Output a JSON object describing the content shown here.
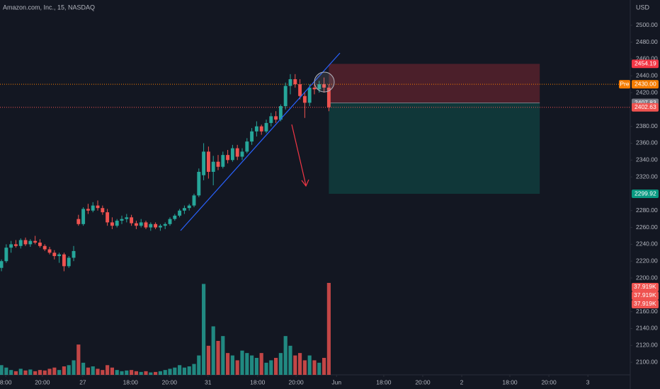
{
  "chart_data": {
    "type": "candlestick",
    "title": "Amazon.com, Inc., 15, NASDAQ",
    "currency": "USD",
    "up_color": "#26a69a",
    "down_color": "#ef5350",
    "open": [
      2212,
      2220,
      2236,
      2240,
      2238,
      2245,
      2240,
      2244,
      2242,
      2238,
      2234,
      2230,
      2226,
      2228,
      2214,
      2224,
      2270,
      2264,
      2282,
      2280,
      2286,
      2283,
      2278,
      2266,
      2262,
      2268,
      2270,
      2272,
      2265,
      2262,
      2266,
      2260,
      2264,
      2260,
      2262,
      2264,
      2270,
      2274,
      2280,
      2283,
      2286,
      2298,
      2322,
      2350,
      2326,
      2338,
      2332,
      2346,
      2340,
      2354,
      2344,
      2350,
      2362,
      2374,
      2380,
      2374,
      2384,
      2392,
      2388,
      2404,
      2428,
      2436,
      2430,
      2416,
      2408,
      2426,
      2424,
      2430,
      2426
    ],
    "high": [
      2222,
      2240,
      2244,
      2245,
      2247,
      2248,
      2246,
      2250,
      2246,
      2240,
      2237,
      2233,
      2230,
      2230,
      2226,
      2238,
      2275,
      2284,
      2288,
      2290,
      2292,
      2286,
      2282,
      2272,
      2270,
      2274,
      2276,
      2275,
      2268,
      2270,
      2268,
      2266,
      2266,
      2264,
      2266,
      2272,
      2276,
      2282,
      2286,
      2288,
      2300,
      2330,
      2360,
      2356,
      2345,
      2346,
      2350,
      2352,
      2358,
      2358,
      2354,
      2366,
      2378,
      2386,
      2382,
      2388,
      2396,
      2398,
      2406,
      2432,
      2442,
      2442,
      2436,
      2420,
      2430,
      2434,
      2434,
      2438,
      2430
    ],
    "low": [
      2208,
      2218,
      2230,
      2236,
      2235,
      2238,
      2237,
      2240,
      2236,
      2232,
      2228,
      2222,
      2218,
      2208,
      2212,
      2220,
      2262,
      2262,
      2276,
      2278,
      2280,
      2275,
      2262,
      2258,
      2260,
      2264,
      2266,
      2262,
      2258,
      2260,
      2258,
      2256,
      2258,
      2256,
      2258,
      2262,
      2268,
      2272,
      2276,
      2280,
      2284,
      2296,
      2316,
      2318,
      2310,
      2328,
      2330,
      2336,
      2338,
      2340,
      2340,
      2348,
      2358,
      2368,
      2370,
      2372,
      2380,
      2384,
      2386,
      2400,
      2418,
      2426,
      2412,
      2390,
      2404,
      2418,
      2420,
      2420,
      2398
    ],
    "close": [
      2220,
      2236,
      2240,
      2238,
      2245,
      2240,
      2244,
      2242,
      2238,
      2234,
      2230,
      2226,
      2228,
      2214,
      2224,
      2232,
      2264,
      2282,
      2280,
      2286,
      2283,
      2278,
      2266,
      2262,
      2268,
      2270,
      2272,
      2265,
      2262,
      2266,
      2260,
      2264,
      2260,
      2262,
      2264,
      2270,
      2274,
      2280,
      2283,
      2286,
      2298,
      2326,
      2350,
      2326,
      2338,
      2332,
      2346,
      2340,
      2354,
      2344,
      2350,
      2362,
      2374,
      2380,
      2374,
      2384,
      2392,
      2388,
      2404,
      2428,
      2436,
      2430,
      2416,
      2408,
      2426,
      2424,
      2430,
      2426,
      2402.63
    ],
    "volume": [
      4000,
      3000,
      2000,
      1500,
      2500,
      1800,
      2200,
      1500,
      2000,
      1800,
      2500,
      3000,
      2000,
      3500,
      4000,
      6000,
      12500,
      5000,
      3000,
      3500,
      2500,
      2000,
      4000,
      3000,
      2000,
      1500,
      1800,
      2000,
      1500,
      1200,
      1500,
      1000,
      1200,
      1500,
      2000,
      2500,
      3000,
      4000,
      3000,
      3500,
      4500,
      8000,
      37500,
      12000,
      20000,
      14000,
      16000,
      9000,
      8000,
      6000,
      10000,
      9000,
      8000,
      7000,
      9000,
      5000,
      6000,
      7000,
      9000,
      16000,
      12000,
      8000,
      9000,
      6000,
      8000,
      6000,
      5000,
      7000,
      37919
    ],
    "xlim": [
      -0.3,
      130.6
    ],
    "xticks": [
      {
        "value": 0.9,
        "label": "8:00"
      },
      {
        "value": 8.5,
        "label": "20:00"
      },
      {
        "value": 16.9,
        "label": "27"
      },
      {
        "value": 26.8,
        "label": "18:00"
      },
      {
        "value": 34.9,
        "label": "20:00"
      },
      {
        "value": 42.9,
        "label": "31"
      },
      {
        "value": 53.2,
        "label": "18:00"
      },
      {
        "value": 61.2,
        "label": "20:00"
      },
      {
        "value": 69.6,
        "label": "Jun"
      },
      {
        "value": 79.4,
        "label": "18:00"
      },
      {
        "value": 87.5,
        "label": "20:00"
      },
      {
        "value": 95.6,
        "label": "2"
      },
      {
        "value": 105.6,
        "label": "18:00"
      },
      {
        "value": 113.7,
        "label": "20:00"
      },
      {
        "value": 121.8,
        "label": "3"
      }
    ],
    "ylim": [
      2085,
      2530
    ],
    "yticks": [
      {
        "value": 2500,
        "label": "2500.00"
      },
      {
        "value": 2480,
        "label": "2480.00"
      },
      {
        "value": 2460,
        "label": "2460.00"
      },
      {
        "value": 2440,
        "label": "2440.00"
      },
      {
        "value": 2420,
        "label": "2420.00"
      },
      {
        "value": 2380,
        "label": "2380.00"
      },
      {
        "value": 2360,
        "label": "2360.00"
      },
      {
        "value": 2340,
        "label": "2340.00"
      },
      {
        "value": 2320,
        "label": "2320.00"
      },
      {
        "value": 2280,
        "label": "2280.00"
      },
      {
        "value": 2260,
        "label": "2260.00"
      },
      {
        "value": 2240,
        "label": "2240.00"
      },
      {
        "value": 2220,
        "label": "2220.00"
      },
      {
        "value": 2200,
        "label": "2200.00"
      },
      {
        "value": 2160,
        "label": "2160.00"
      },
      {
        "value": 2140,
        "label": "2140.00"
      },
      {
        "value": 2120,
        "label": "2120.00"
      },
      {
        "value": 2100,
        "label": "2100.00"
      }
    ],
    "vlim": [
      0,
      42000
    ],
    "grid": false,
    "position_box": {
      "x_start": 68,
      "x_end": 111.8,
      "stop": 2454.19,
      "entry": 2407.83,
      "target": 2299.92,
      "stop_color": "#f23645",
      "target_color": "#089981"
    },
    "premarket": {
      "label": "Pre",
      "value": 2430,
      "value_label": "2430.00",
      "color": "#f57c00"
    },
    "last_price_label": "2402.63",
    "volume_labels": [
      {
        "value": 37919,
        "label": "37.919K"
      },
      {
        "value": 37919,
        "label": "37.919K"
      },
      {
        "value": 37919,
        "label": "37.919K"
      }
    ]
  }
}
